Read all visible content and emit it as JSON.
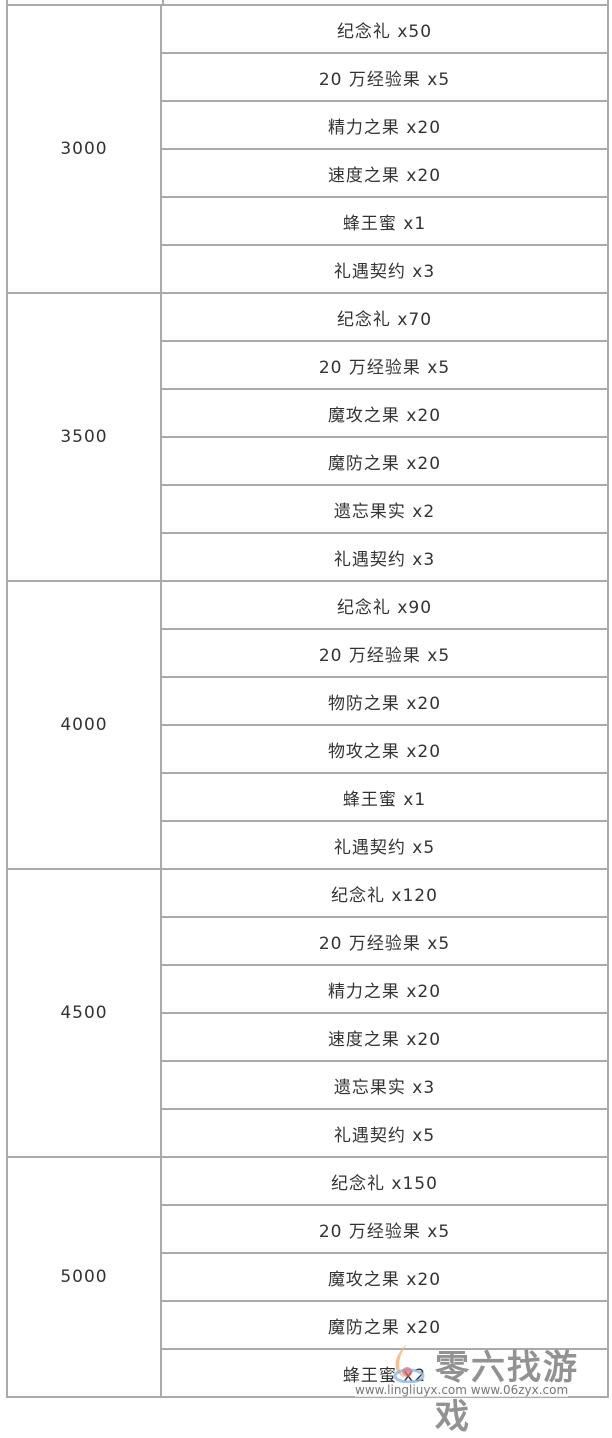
{
  "table": {
    "groups": [
      {
        "tier": "3000",
        "items": [
          "纪念礼 x50",
          "20 万经验果 x5",
          "精力之果 x20",
          "速度之果 x20",
          "蜂王蜜 x1",
          "礼遇契约 x3"
        ]
      },
      {
        "tier": "3500",
        "items": [
          "纪念礼 x70",
          "20 万经验果 x5",
          "魔攻之果 x20",
          "魔防之果 x20",
          "遗忘果实 x2",
          "礼遇契约 x3"
        ]
      },
      {
        "tier": "4000",
        "items": [
          "纪念礼 x90",
          "20 万经验果 x5",
          "物防之果 x20",
          "物攻之果 x20",
          "蜂王蜜 x1",
          "礼遇契约 x5"
        ]
      },
      {
        "tier": "4500",
        "items": [
          "纪念礼 x120",
          "20 万经验果 x5",
          "精力之果 x20",
          "速度之果 x20",
          "遗忘果实 x3",
          "礼遇契约 x5"
        ]
      },
      {
        "tier": "5000",
        "items": [
          "纪念礼 x150",
          "20 万经验果 x5",
          "魔攻之果 x20",
          "魔防之果 x20",
          "蜂王蜜 x2"
        ]
      }
    ]
  },
  "watermark": {
    "title": "零六找游戏",
    "urls": "www.lingliuyx.com   www.06zyx.com"
  },
  "colors": {
    "border": "#aaaaaa",
    "text": "#333333"
  }
}
